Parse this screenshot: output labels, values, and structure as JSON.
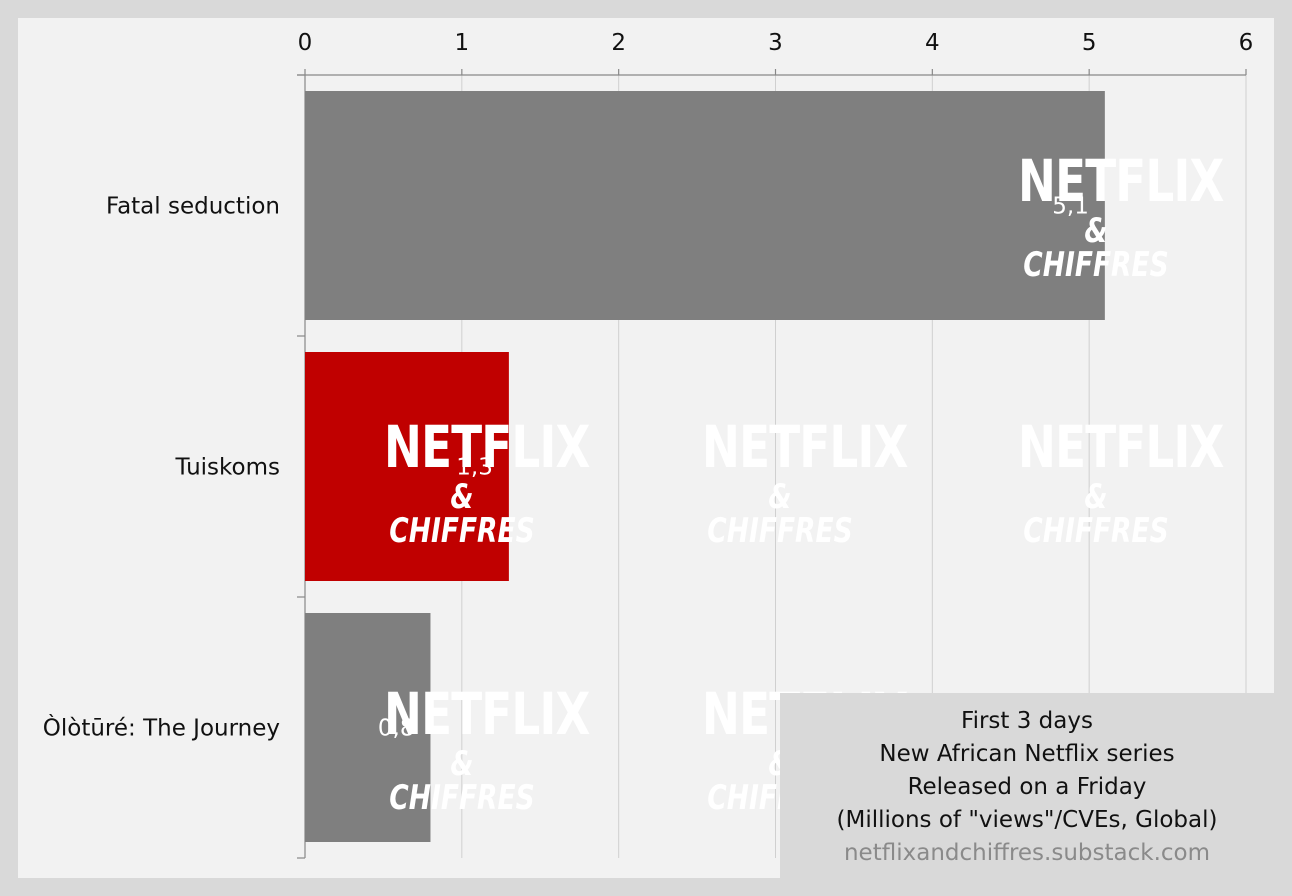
{
  "watermark": {
    "line1": "NETFLIX",
    "line2": "& CHIFFRES"
  },
  "caption": {
    "line1": "First 3 days",
    "line2": "New African Netflix series",
    "line3": "Released on a Friday",
    "line4": "(Millions of \"views\"/CVEs, Global)",
    "source": "netflixandchiffres.substack.com"
  },
  "colors": {
    "background": "#d9d9d9",
    "plot_background": "#f2f2f2",
    "bar_default": "#7f7f7f",
    "bar_highlight": "#c00000",
    "gridline": "#d0d0d0",
    "axis": "#888888",
    "label_text": "#111111",
    "value_text": "#ffffff"
  },
  "chart_data": {
    "type": "bar",
    "orientation": "horizontal",
    "categories": [
      "Fatal seduction",
      "Tuiskoms",
      "Òlòtūré: The Journey"
    ],
    "values": [
      5.1,
      1.3,
      0.8
    ],
    "value_labels": [
      "5,1",
      "1,3",
      "0,8"
    ],
    "highlight_index": 1,
    "xlim": [
      0,
      6
    ],
    "x_ticks": [
      0,
      1,
      2,
      3,
      4,
      5,
      6
    ],
    "x_tick_labels": [
      "0",
      "1",
      "2",
      "3",
      "4",
      "5",
      "6"
    ],
    "x_axis_position": "top",
    "grid": true,
    "title": "",
    "xlabel": "",
    "ylabel": ""
  }
}
